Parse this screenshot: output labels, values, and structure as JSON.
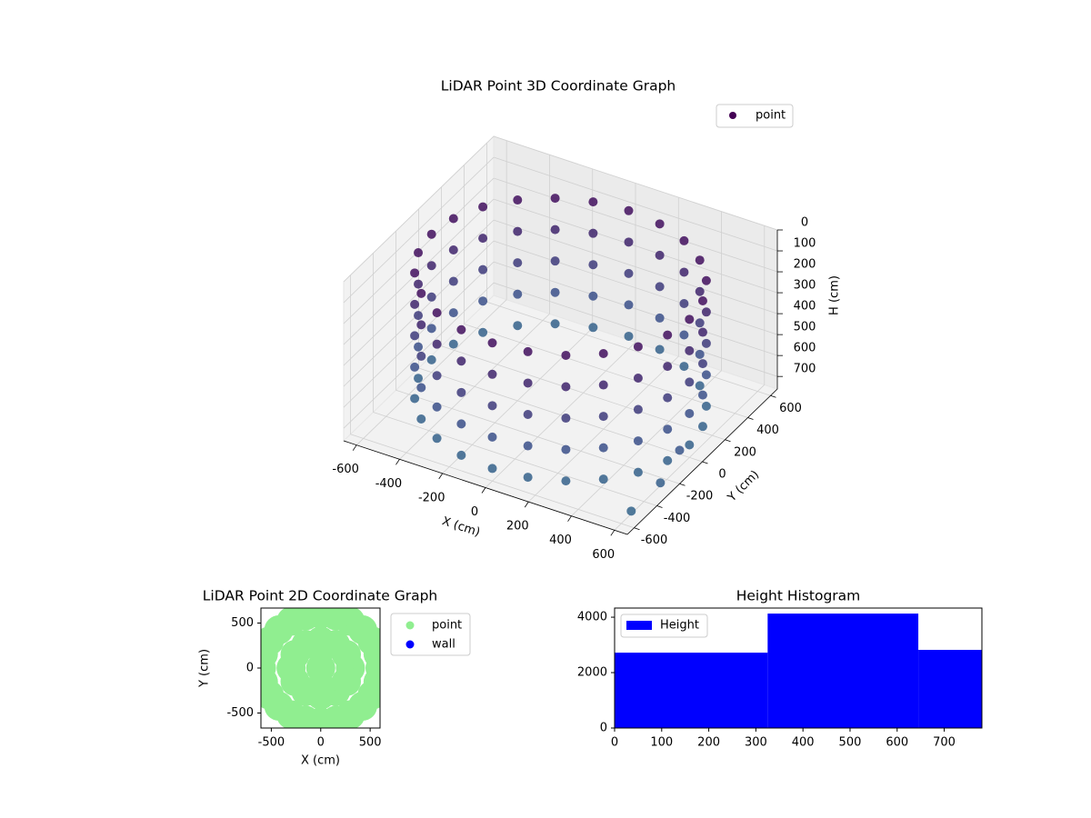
{
  "chart_data": [
    {
      "type": "scatter3d",
      "title": "LiDAR Point 3D Coordinate Graph",
      "xlabel": "X (cm)",
      "ylabel": "Y (cm)",
      "zlabel": "H (cm)",
      "xlim": [
        -660,
        660
      ],
      "ylim": [
        -660,
        660
      ],
      "zlim": [
        760,
        0
      ],
      "xticks": [
        -600,
        -400,
        -200,
        0,
        200,
        400,
        600
      ],
      "yticks": [
        -600,
        -400,
        -200,
        0,
        200,
        400,
        600
      ],
      "zticks": [
        0,
        100,
        200,
        300,
        400,
        500,
        600,
        700
      ],
      "colormap": [
        "#440154",
        "#3b528b",
        "#21918c",
        "#5ec962"
      ],
      "legend": "upper right",
      "grid": true,
      "series": [
        {
          "name": "point",
          "x": [
            600,
            580,
            520,
            424,
            300,
            155,
            0,
            -155,
            -300,
            -424,
            -520,
            -580,
            -600,
            -580,
            -520,
            -424,
            -300,
            -155,
            0,
            155,
            300,
            424,
            520,
            580,
            600,
            580,
            520,
            424,
            300,
            155,
            0,
            -155,
            -300,
            -424,
            -520,
            -580,
            -600,
            -580,
            -520,
            -424,
            -300,
            -155,
            0,
            155,
            300,
            424,
            520,
            580,
            600,
            580,
            520,
            424,
            300,
            155,
            0,
            -155,
            -300,
            -424,
            -520,
            -580,
            -600,
            -580,
            -520,
            -424,
            -300,
            -155,
            0,
            155,
            300,
            424,
            520,
            580,
            600,
            580,
            520,
            424,
            300,
            155,
            0,
            -155,
            -300,
            -424,
            -520,
            -580,
            -600,
            -580,
            -520,
            -424,
            -300,
            -155,
            0,
            155,
            300,
            424,
            520,
            580,
            600,
            580,
            520,
            424,
            300,
            155,
            0,
            -155,
            -300,
            -424,
            -520,
            -580,
            -600,
            -580,
            -520,
            -424,
            -300,
            -155,
            0,
            155,
            300,
            424,
            520,
            580,
            650,
            620,
            660
          ],
          "y": [
            0,
            155,
            300,
            424,
            520,
            580,
            600,
            580,
            520,
            424,
            300,
            155,
            0,
            -155,
            -300,
            -424,
            -520,
            -580,
            -600,
            -580,
            -520,
            -424,
            -300,
            -155,
            0,
            155,
            300,
            424,
            520,
            580,
            600,
            580,
            520,
            424,
            300,
            155,
            0,
            -155,
            -300,
            -424,
            -520,
            -580,
            -600,
            -580,
            -520,
            -424,
            -300,
            -155,
            0,
            155,
            300,
            424,
            520,
            580,
            600,
            580,
            520,
            424,
            300,
            155,
            0,
            -155,
            -300,
            -424,
            -520,
            -580,
            -600,
            -580,
            -520,
            -424,
            -300,
            -155,
            0,
            155,
            300,
            424,
            520,
            580,
            600,
            580,
            520,
            424,
            300,
            155,
            0,
            -155,
            -300,
            -424,
            -520,
            -580,
            -600,
            -580,
            -520,
            -424,
            -300,
            -155,
            0,
            155,
            300,
            424,
            520,
            580,
            600,
            580,
            520,
            424,
            300,
            155,
            0,
            -155,
            -300,
            -424,
            -520,
            -580,
            -600,
            -580,
            -520,
            -424,
            -300,
            -155,
            -350,
            -550,
            -200
          ],
          "z": [
            100,
            100,
            100,
            100,
            100,
            100,
            100,
            100,
            100,
            100,
            100,
            100,
            100,
            100,
            100,
            100,
            100,
            100,
            100,
            100,
            100,
            100,
            100,
            100,
            250,
            250,
            250,
            250,
            250,
            250,
            250,
            250,
            250,
            250,
            250,
            250,
            250,
            250,
            250,
            250,
            250,
            250,
            250,
            250,
            250,
            250,
            250,
            250,
            400,
            400,
            400,
            400,
            400,
            400,
            400,
            400,
            400,
            400,
            400,
            400,
            400,
            400,
            400,
            400,
            400,
            400,
            400,
            400,
            400,
            400,
            400,
            400,
            550,
            550,
            550,
            550,
            550,
            550,
            550,
            550,
            550,
            550,
            550,
            550,
            550,
            550,
            550,
            550,
            550,
            550,
            550,
            550,
            550,
            550,
            550,
            550,
            700,
            700,
            700,
            700,
            700,
            700,
            700,
            700,
            700,
            700,
            700,
            700,
            700,
            700,
            700,
            700,
            700,
            700,
            700,
            700,
            700,
            700,
            700,
            700,
            680,
            720,
            600
          ]
        }
      ]
    },
    {
      "type": "scatter",
      "title": "LiDAR Point 2D Coordinate Graph",
      "xlabel": "X (cm)",
      "ylabel": "Y (cm)",
      "xlim": [
        -605,
        600
      ],
      "ylim": [
        -667,
        667
      ],
      "xticks": [
        -500,
        0,
        500
      ],
      "yticks": [
        -500,
        0,
        500
      ],
      "legend": "outside right",
      "series": [
        {
          "name": "point",
          "color": "#90ee90",
          "x": [
            600,
            580,
            520,
            424,
            300,
            155,
            0,
            -155,
            -300,
            -424,
            -520,
            -580,
            -600,
            -580,
            -520,
            -424,
            -300,
            -155,
            0,
            155,
            300,
            424,
            520,
            580,
            300,
            260,
            150,
            0,
            -150,
            -260,
            -300,
            -260,
            -150,
            0,
            150,
            260,
            0
          ],
          "y": [
            0,
            155,
            300,
            424,
            520,
            580,
            600,
            580,
            520,
            424,
            300,
            155,
            0,
            -155,
            -300,
            -424,
            -520,
            -580,
            -600,
            -580,
            -520,
            -424,
            -300,
            -155,
            0,
            150,
            260,
            300,
            260,
            150,
            0,
            -150,
            -260,
            -300,
            -260,
            -150,
            0
          ]
        },
        {
          "name": "wall",
          "color": "#0000ff",
          "x": [],
          "y": []
        }
      ]
    },
    {
      "type": "histogram",
      "title": "Height Histogram",
      "bins": [
        0,
        325,
        645,
        780
      ],
      "counts": [
        2720,
        4130,
        2820
      ],
      "xlim": [
        0,
        780
      ],
      "ylim": [
        0,
        4330
      ],
      "xticks": [
        0,
        100,
        200,
        300,
        400,
        500,
        600,
        700
      ],
      "yticks": [
        0,
        2000,
        4000
      ],
      "series_name": "Height",
      "color": "#0000ff",
      "legend": "upper left"
    }
  ]
}
